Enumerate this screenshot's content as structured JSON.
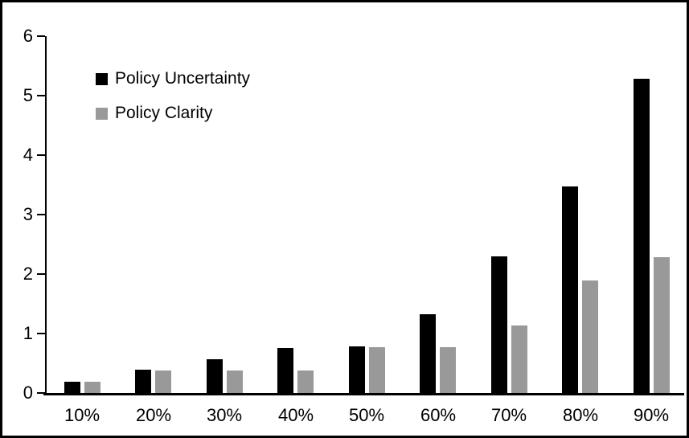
{
  "chart_data": {
    "type": "bar",
    "title": "",
    "xlabel": "",
    "ylabel": "",
    "categories": [
      "10%",
      "20%",
      "30%",
      "40%",
      "50%",
      "60%",
      "70%",
      "80%",
      "90%"
    ],
    "series": [
      {
        "name": "Policy Uncertainty",
        "color": "#000000",
        "values": [
          0.19,
          0.39,
          0.57,
          0.76,
          0.78,
          1.32,
          2.3,
          3.47,
          5.28
        ]
      },
      {
        "name": "Policy Clarity",
        "color": "#999999",
        "values": [
          0.19,
          0.38,
          0.38,
          0.38,
          0.77,
          0.77,
          1.14,
          1.89,
          2.29
        ]
      }
    ],
    "ylim": [
      0,
      6
    ],
    "yticks": [
      0,
      1,
      2,
      3,
      4,
      5,
      6
    ],
    "grid": false,
    "legend_position": "inside-top-left",
    "axis_color": "#000000",
    "frame_color": "#000000",
    "background_color": "#ffffff"
  }
}
